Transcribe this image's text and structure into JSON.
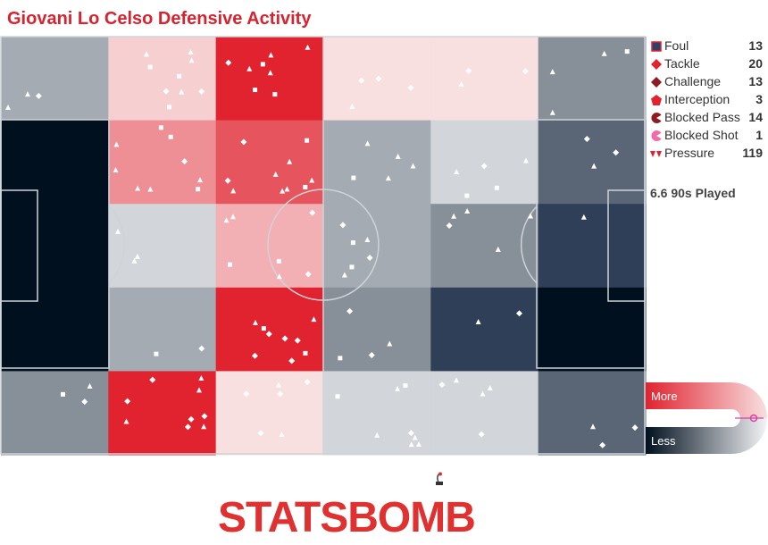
{
  "title": "Giovani Lo Celso Defensive Activity",
  "played_label": "6.6 90s Played",
  "brand": "STATSBOMB",
  "scale": {
    "more": "More",
    "less": "Less"
  },
  "colors": {
    "red": "#e0232f",
    "light_red": "#f8dfe0",
    "dark_navy": "#01101f",
    "pressure_marker": "#ffffff"
  },
  "legend": [
    {
      "label": "Foul",
      "value": "13",
      "icon": "square-marker",
      "color": "#2e3f6a"
    },
    {
      "label": "Tackle",
      "value": "20",
      "icon": "diamond-marker",
      "color": "#e0232f"
    },
    {
      "label": "Challenge",
      "value": "13",
      "icon": "diamond-marker",
      "color": "#8e1a22"
    },
    {
      "label": "Interception",
      "value": "3",
      "icon": "pentagon-marker",
      "color": "#e0232f"
    },
    {
      "label": "Blocked Pass",
      "value": "14",
      "icon": "pacman-marker",
      "color": "#8e1a22"
    },
    {
      "label": "Blocked Shot",
      "value": "1",
      "icon": "pacman-marker",
      "color": "#f06ca8"
    },
    {
      "label": "Pressure",
      "value": "119",
      "icon": "triangle-marker",
      "color": "#e0232f"
    }
  ],
  "chart_data": {
    "type": "heatmap",
    "title": "Giovani Lo Celso Defensive Activity",
    "columns": 6,
    "rows": 5,
    "cell_colors": [
      [
        "#a4abb2",
        "#f6cfd1",
        "#e0232f",
        "#f8dfe0",
        "#f8dfe0",
        "#878f98"
      ],
      [
        "#01101f",
        "#ee8f95",
        "#e6555d",
        "#a4abb2",
        "#d2d5d9",
        "#5a6676"
      ],
      [
        "#01101f",
        "#d2d5d9",
        "#f3b0b4",
        "#a4abb2",
        "#878f98",
        "#2e3f57"
      ],
      [
        "#01101f",
        "#a4abb2",
        "#e0232f",
        "#878f98",
        "#2e3f57",
        "#01101f"
      ],
      [
        "#878f98",
        "#e0232f",
        "#f8dfe0",
        "#d2d5d9",
        "#d2d5d9",
        "#5a6676"
      ]
    ],
    "scale": [
      "More",
      "Less"
    ],
    "legend_totals": {
      "Foul": 13,
      "Tackle": 20,
      "Challenge": 13,
      "Interception": 3,
      "Blocked Pass": 14,
      "Blocked Shot": 1,
      "Pressure": 119
    }
  }
}
